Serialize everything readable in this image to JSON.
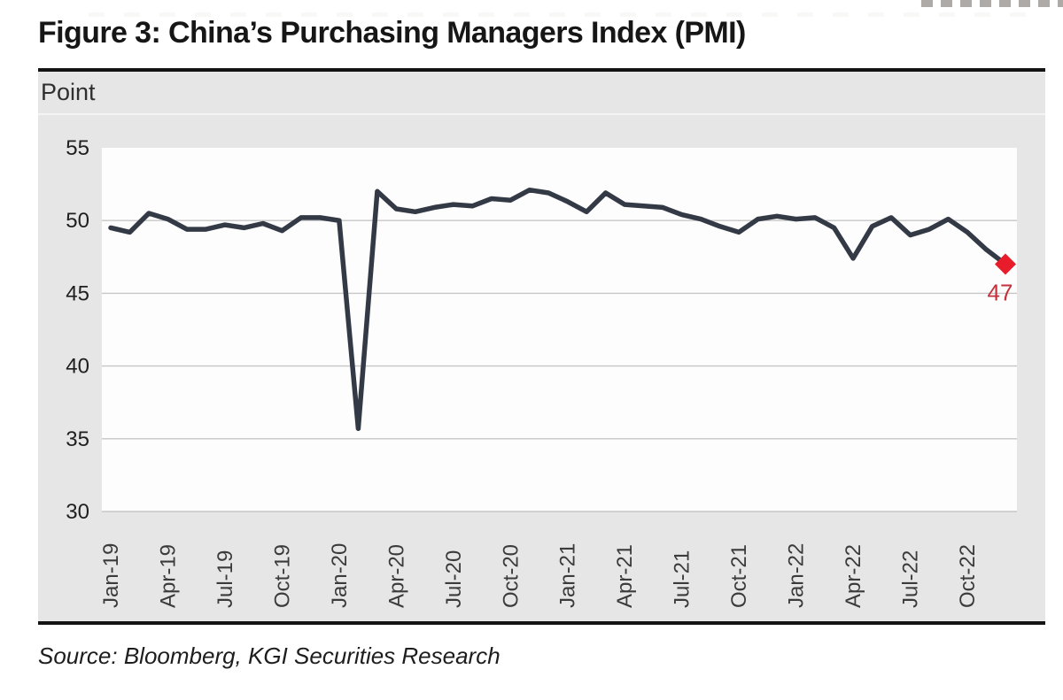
{
  "title": "Figure 3: China’s Purchasing Managers Index (PMI)",
  "source": "Source: Bloomberg, KGI Securities Research",
  "chart_data": {
    "type": "line",
    "title": "Figure 3: China’s Purchasing Managers Index (PMI)",
    "ylabel": "Point",
    "ylim": [
      30,
      55
    ],
    "yticks": [
      55,
      50,
      45,
      40,
      35,
      30
    ],
    "xticks": [
      "Jan-19",
      "Apr-19",
      "Jul-19",
      "Oct-19",
      "Jan-20",
      "Apr-20",
      "Jul-20",
      "Oct-20",
      "Jan-21",
      "Apr-21",
      "Jul-21",
      "Oct-21",
      "Jan-22",
      "Apr-22",
      "Jul-22",
      "Oct-22"
    ],
    "x": [
      "Jan-19",
      "Feb-19",
      "Mar-19",
      "Apr-19",
      "May-19",
      "Jun-19",
      "Jul-19",
      "Aug-19",
      "Sep-19",
      "Oct-19",
      "Nov-19",
      "Dec-19",
      "Jan-20",
      "Feb-20",
      "Mar-20",
      "Apr-20",
      "May-20",
      "Jun-20",
      "Jul-20",
      "Aug-20",
      "Sep-20",
      "Oct-20",
      "Nov-20",
      "Dec-20",
      "Jan-21",
      "Feb-21",
      "Mar-21",
      "Apr-21",
      "May-21",
      "Jun-21",
      "Jul-21",
      "Aug-21",
      "Sep-21",
      "Oct-21",
      "Nov-21",
      "Dec-21",
      "Jan-22",
      "Feb-22",
      "Mar-22",
      "Apr-22",
      "May-22",
      "Jun-22",
      "Jul-22",
      "Aug-22",
      "Sep-22",
      "Oct-22",
      "Nov-22",
      "Dec-22"
    ],
    "series": [
      {
        "name": "China PMI",
        "values": [
          49.5,
          49.2,
          50.5,
          50.1,
          49.4,
          49.4,
          49.7,
          49.5,
          49.8,
          49.3,
          50.2,
          50.2,
          50.0,
          35.7,
          52.0,
          50.8,
          50.6,
          50.9,
          51.1,
          51.0,
          51.5,
          51.4,
          52.1,
          51.9,
          51.3,
          50.6,
          51.9,
          51.1,
          51.0,
          50.9,
          50.4,
          50.1,
          49.6,
          49.2,
          50.1,
          50.3,
          50.1,
          50.2,
          49.5,
          47.4,
          49.6,
          50.2,
          49.0,
          49.4,
          50.1,
          49.2,
          48.0,
          47.0
        ]
      }
    ],
    "last_point_label": "47",
    "grid": true,
    "legend": "none",
    "line_color": "#333a46",
    "marker_color": "#e81c2b",
    "label_color": "#c4303c",
    "grid_color": "#c6c6c6",
    "panel_color": "#e6e6e6",
    "plot_bg_color": "#fdfdfd"
  }
}
